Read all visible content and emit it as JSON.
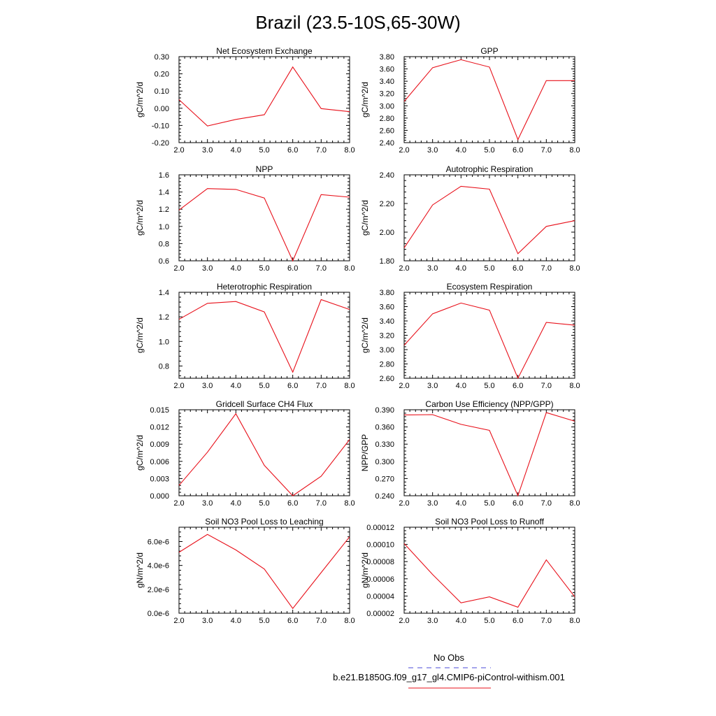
{
  "figure": {
    "title": "Brazil (23.5-10S,65-30W)"
  },
  "legend": {
    "obs_label": "No Obs",
    "obs_color": "#4b4bd8",
    "model_label": "b.e21.B1850G.f09_g17_gl4.CMIP6-piControl-withism.001",
    "model_color": "#e8101a"
  },
  "chart_data": [
    {
      "type": "line",
      "title": "Net Ecosystem Exchange",
      "ylabel": "gC/m^2/d",
      "x": [
        2,
        3,
        4,
        5,
        6,
        7,
        8
      ],
      "xticks": [
        "2.0",
        "3.0",
        "4.0",
        "5.0",
        "6.0",
        "7.0",
        "8.0"
      ],
      "xlim": [
        2,
        8
      ],
      "ylim": [
        -0.2,
        0.3
      ],
      "yticks": [
        -0.2,
        -0.1,
        0.0,
        0.1,
        0.2,
        0.3
      ],
      "ytick_labels": [
        "-0.20",
        "-0.10",
        "0.00",
        "0.10",
        "0.20",
        "0.30"
      ],
      "series": [
        {
          "values": [
            0.05,
            -0.103,
            -0.065,
            -0.038,
            0.24,
            -0.002,
            -0.02
          ]
        }
      ]
    },
    {
      "type": "line",
      "title": "GPP",
      "ylabel": "gC/m^2/d",
      "x": [
        2,
        3,
        4,
        5,
        6,
        7,
        8
      ],
      "xticks": [
        "2.0",
        "3.0",
        "4.0",
        "5.0",
        "6.0",
        "7.0",
        "8.0"
      ],
      "xlim": [
        2,
        8
      ],
      "ylim": [
        2.4,
        3.8
      ],
      "yticks": [
        2.4,
        2.6,
        2.8,
        3.0,
        3.2,
        3.4,
        3.6,
        3.8
      ],
      "ytick_labels": [
        "2.40",
        "2.60",
        "2.80",
        "3.00",
        "3.20",
        "3.40",
        "3.60",
        "3.80"
      ],
      "series": [
        {
          "values": [
            3.07,
            3.62,
            3.75,
            3.63,
            2.45,
            3.41,
            3.41
          ]
        }
      ]
    },
    {
      "type": "line",
      "title": "NPP",
      "ylabel": "gC/m^2/d",
      "x": [
        2,
        3,
        4,
        5,
        6,
        7,
        8
      ],
      "xticks": [
        "2.0",
        "3.0",
        "4.0",
        "5.0",
        "6.0",
        "7.0",
        "8.0"
      ],
      "xlim": [
        2,
        8
      ],
      "ylim": [
        0.6,
        1.6
      ],
      "yticks": [
        0.6,
        0.8,
        1.0,
        1.2,
        1.4,
        1.6
      ],
      "ytick_labels": [
        "0.6",
        "0.8",
        "1.0",
        "1.2",
        "1.4",
        "1.6"
      ],
      "series": [
        {
          "values": [
            1.19,
            1.44,
            1.43,
            1.33,
            0.6,
            1.37,
            1.34
          ]
        }
      ]
    },
    {
      "type": "line",
      "title": "Autotrophic Respiration",
      "ylabel": "gC/m^2/d",
      "x": [
        2,
        3,
        4,
        5,
        6,
        7,
        8
      ],
      "xticks": [
        "2.0",
        "3.0",
        "4.0",
        "5.0",
        "6.0",
        "7.0",
        "8.0"
      ],
      "xlim": [
        2,
        8
      ],
      "ylim": [
        1.8,
        2.4
      ],
      "yticks": [
        1.8,
        2.0,
        2.2,
        2.4
      ],
      "ytick_labels": [
        "1.80",
        "2.00",
        "2.20",
        "2.40"
      ],
      "series": [
        {
          "values": [
            1.89,
            2.19,
            2.32,
            2.3,
            1.85,
            2.04,
            2.08
          ]
        }
      ]
    },
    {
      "type": "line",
      "title": "Heterotrophic Respiration",
      "ylabel": "gC/m^2/d",
      "x": [
        2,
        3,
        4,
        5,
        6,
        7,
        8
      ],
      "xticks": [
        "2.0",
        "3.0",
        "4.0",
        "5.0",
        "6.0",
        "7.0",
        "8.0"
      ],
      "xlim": [
        2,
        8
      ],
      "ylim": [
        0.7,
        1.4
      ],
      "yticks": [
        0.8,
        1.0,
        1.2,
        1.4
      ],
      "ytick_labels": [
        "0.8",
        "1.0",
        "1.2",
        "1.4"
      ],
      "series": [
        {
          "values": [
            1.18,
            1.31,
            1.325,
            1.24,
            0.75,
            1.34,
            1.26
          ]
        }
      ]
    },
    {
      "type": "line",
      "title": "Ecosystem Respiration",
      "ylabel": "gC/m^2/d",
      "x": [
        2,
        3,
        4,
        5,
        6,
        7,
        8
      ],
      "xticks": [
        "2.0",
        "3.0",
        "4.0",
        "5.0",
        "6.0",
        "7.0",
        "8.0"
      ],
      "xlim": [
        2,
        8
      ],
      "ylim": [
        2.6,
        3.8
      ],
      "yticks": [
        2.6,
        2.8,
        3.0,
        3.2,
        3.4,
        3.6,
        3.8
      ],
      "ytick_labels": [
        "2.60",
        "2.80",
        "3.00",
        "3.20",
        "3.40",
        "3.60",
        "3.80"
      ],
      "series": [
        {
          "values": [
            3.06,
            3.5,
            3.65,
            3.55,
            2.6,
            3.38,
            3.34
          ]
        }
      ]
    },
    {
      "type": "line",
      "title": "Gridcell Surface CH4 Flux",
      "ylabel": "gC/m^2/d",
      "x": [
        2,
        3,
        4,
        5,
        6,
        7,
        8
      ],
      "xticks": [
        "2.0",
        "3.0",
        "4.0",
        "5.0",
        "6.0",
        "7.0",
        "8.0"
      ],
      "xlim": [
        2,
        8
      ],
      "ylim": [
        0.0,
        0.015
      ],
      "yticks": [
        0.0,
        0.003,
        0.006,
        0.009,
        0.012,
        0.015
      ],
      "ytick_labels": [
        "0.000",
        "0.003",
        "0.006",
        "0.009",
        "0.012",
        "0.015"
      ],
      "series": [
        {
          "values": [
            0.0018,
            0.0076,
            0.0143,
            0.0053,
            0.0,
            0.0034,
            0.0098
          ]
        }
      ]
    },
    {
      "type": "line",
      "title": "Carbon Use Efficiency (NPP/GPP)",
      "ylabel": "NPP/GPP",
      "x": [
        2,
        3,
        4,
        5,
        6,
        7,
        8
      ],
      "xticks": [
        "2.0",
        "3.0",
        "4.0",
        "5.0",
        "6.0",
        "7.0",
        "8.0"
      ],
      "xlim": [
        2,
        8
      ],
      "ylim": [
        0.24,
        0.39
      ],
      "yticks": [
        0.24,
        0.27,
        0.3,
        0.33,
        0.36,
        0.39
      ],
      "ytick_labels": [
        "0.240",
        "0.270",
        "0.300",
        "0.330",
        "0.360",
        "0.390"
      ],
      "series": [
        {
          "values": [
            0.381,
            0.3815,
            0.3645,
            0.354,
            0.24,
            0.385,
            0.37
          ]
        }
      ]
    },
    {
      "type": "line",
      "title": "Soil NO3 Pool Loss to Leaching",
      "ylabel": "gN/m^2/d",
      "x": [
        2,
        3,
        4,
        5,
        6,
        7,
        8
      ],
      "xticks": [
        "2.0",
        "3.0",
        "4.0",
        "5.0",
        "6.0",
        "7.0",
        "8.0"
      ],
      "xlim": [
        2,
        8
      ],
      "ylim": [
        0.0,
        7.2e-06
      ],
      "yticks": [
        0.0,
        2e-06,
        4e-06,
        6e-06
      ],
      "ytick_labels": [
        "0.0e-6",
        "2.0e-6",
        "4.0e-6",
        "6.0e-6"
      ],
      "series": [
        {
          "values": [
            5.1e-06,
            6.6e-06,
            5.3e-06,
            3.7e-06,
            4e-07,
            3.4e-06,
            6.4e-06
          ]
        }
      ]
    },
    {
      "type": "line",
      "title": "Soil NO3 Pool Loss to Runoff",
      "ylabel": "gN/m^2/d",
      "x": [
        2,
        3,
        4,
        5,
        6,
        7,
        8
      ],
      "xticks": [
        "2.0",
        "3.0",
        "4.0",
        "5.0",
        "6.0",
        "7.0",
        "8.0"
      ],
      "xlim": [
        2,
        8
      ],
      "ylim": [
        2e-05,
        0.00012
      ],
      "yticks": [
        2e-05,
        4e-05,
        6e-05,
        8e-05,
        0.0001,
        0.00012
      ],
      "ytick_labels": [
        "0.00002",
        "0.00004",
        "0.00006",
        "0.00008",
        "0.00010",
        "0.00012"
      ],
      "series": [
        {
          "values": [
            0.000101,
            6.5e-05,
            3.2e-05,
            3.9e-05,
            2.7e-05,
            8.2e-05,
            3.9e-05
          ]
        }
      ]
    }
  ]
}
